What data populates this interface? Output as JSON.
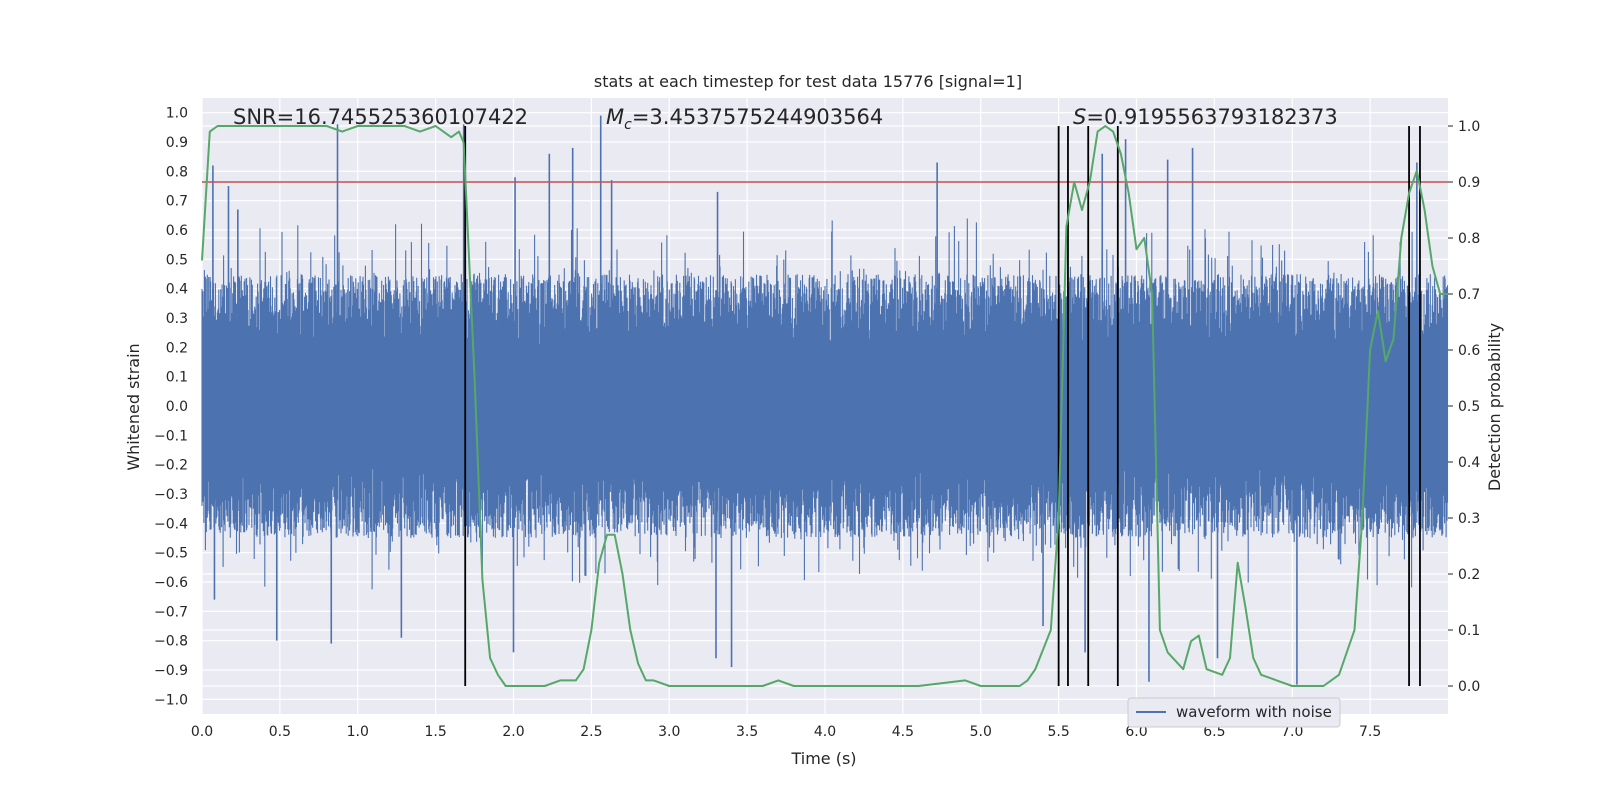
{
  "chart_data": {
    "type": "line",
    "title": "stats at each timestep for test data 15776 [signal=1]",
    "xlabel": "Time (s)",
    "ylabel_left": "Whitened strain",
    "ylabel_right": "Detection probability",
    "xlim": [
      0.0,
      8.0
    ],
    "ylim_left": [
      -1.05,
      1.05
    ],
    "ylim_right": [
      -0.05,
      1.05
    ],
    "x_ticks": [
      "0.0",
      "0.5",
      "1.0",
      "1.5",
      "2.0",
      "2.5",
      "3.0",
      "3.5",
      "4.0",
      "4.5",
      "5.0",
      "5.5",
      "6.0",
      "6.5",
      "7.0",
      "7.5"
    ],
    "y_ticks_left": [
      "1.0",
      "0.9",
      "0.8",
      "0.7",
      "0.6",
      "0.5",
      "0.4",
      "0.3",
      "0.2",
      "0.1",
      "0.0",
      "-0.1",
      "-0.2",
      "-0.3",
      "-0.4",
      "-0.5",
      "-0.6",
      "-0.7",
      "-0.8",
      "-0.9",
      "-1.0"
    ],
    "y_ticks_right": [
      "1.0",
      "0.9",
      "0.8",
      "0.7",
      "0.6",
      "0.5",
      "0.4",
      "0.3",
      "0.2",
      "0.1",
      "0.0"
    ],
    "grid": true,
    "legend_position": "lower-right",
    "annotations": {
      "snr": "SNR=16.745525360107422",
      "mc_symbol": "M",
      "mc_sub": "c",
      "mc_value": "=3.4537575244903564",
      "s_symbol": "S",
      "s_value": "=0.9195563793182373"
    },
    "colors": {
      "waveform": "#4c72b0",
      "probability": "#55a868",
      "threshold": "#c44e52",
      "detection_line": "#000000",
      "plot_bg": "#eaeaf2",
      "grid": "#ffffff"
    },
    "series": [
      {
        "name": "waveform with noise",
        "axis": "left",
        "style": "dense-noise",
        "envelope_upper": 0.45,
        "envelope_lower": -0.45,
        "spikes": [
          {
            "x": 0.07,
            "y": 0.82
          },
          {
            "x": 0.17,
            "y": 0.75
          },
          {
            "x": 0.23,
            "y": 0.67
          },
          {
            "x": 0.87,
            "y": 0.96
          },
          {
            "x": 1.68,
            "y": 0.96
          },
          {
            "x": 2.01,
            "y": 0.78
          },
          {
            "x": 2.23,
            "y": 0.86
          },
          {
            "x": 2.38,
            "y": 0.88
          },
          {
            "x": 2.56,
            "y": 0.99
          },
          {
            "x": 2.63,
            "y": 0.77
          },
          {
            "x": 3.31,
            "y": 0.73
          },
          {
            "x": 4.72,
            "y": 0.83
          },
          {
            "x": 5.78,
            "y": 0.86
          },
          {
            "x": 5.93,
            "y": 0.91
          },
          {
            "x": 6.2,
            "y": 0.84
          },
          {
            "x": 6.36,
            "y": 0.88
          },
          {
            "x": 7.8,
            "y": 0.83
          },
          {
            "x": 0.08,
            "y": -0.66
          },
          {
            "x": 0.48,
            "y": -0.8
          },
          {
            "x": 0.83,
            "y": -0.81
          },
          {
            "x": 1.28,
            "y": -0.79
          },
          {
            "x": 2.0,
            "y": -0.84
          },
          {
            "x": 3.3,
            "y": -0.86
          },
          {
            "x": 3.4,
            "y": -0.89
          },
          {
            "x": 5.4,
            "y": -0.75
          },
          {
            "x": 5.67,
            "y": -0.84
          },
          {
            "x": 6.08,
            "y": -0.94
          },
          {
            "x": 6.52,
            "y": -0.86
          },
          {
            "x": 7.03,
            "y": -0.95
          }
        ]
      },
      {
        "name": "detection probability",
        "axis": "right",
        "x": [
          0.0,
          0.05,
          0.1,
          0.2,
          0.3,
          0.4,
          0.5,
          0.6,
          0.7,
          0.8,
          0.9,
          1.0,
          1.1,
          1.2,
          1.3,
          1.4,
          1.5,
          1.6,
          1.65,
          1.68,
          1.75,
          1.8,
          1.85,
          1.9,
          1.95,
          2.0,
          2.2,
          2.3,
          2.4,
          2.45,
          2.5,
          2.55,
          2.6,
          2.65,
          2.7,
          2.75,
          2.8,
          2.85,
          2.9,
          3.0,
          3.2,
          3.4,
          3.6,
          3.7,
          3.8,
          4.0,
          4.4,
          4.6,
          4.9,
          5.0,
          5.2,
          5.25,
          5.3,
          5.35,
          5.45,
          5.5,
          5.55,
          5.6,
          5.65,
          5.7,
          5.75,
          5.8,
          5.85,
          5.9,
          5.95,
          6.0,
          6.05,
          6.1,
          6.15,
          6.2,
          6.3,
          6.35,
          6.4,
          6.45,
          6.55,
          6.6,
          6.65,
          6.7,
          6.75,
          6.8,
          6.9,
          7.0,
          7.1,
          7.2,
          7.25,
          7.3,
          7.4,
          7.45,
          7.5,
          7.55,
          7.6,
          7.65,
          7.7,
          7.75,
          7.8,
          7.85,
          7.9,
          7.95,
          8.0
        ],
        "values": [
          0.76,
          0.99,
          1.0,
          1.0,
          1.0,
          1.0,
          1.0,
          1.0,
          1.0,
          1.0,
          0.99,
          1.0,
          1.0,
          1.0,
          1.0,
          0.99,
          1.0,
          0.98,
          0.99,
          0.97,
          0.55,
          0.19,
          0.05,
          0.02,
          0.0,
          0.0,
          0.0,
          0.01,
          0.01,
          0.03,
          0.1,
          0.22,
          0.27,
          0.27,
          0.2,
          0.1,
          0.04,
          0.01,
          0.01,
          0.0,
          0.0,
          0.0,
          0.0,
          0.01,
          0.0,
          0.0,
          0.0,
          0.0,
          0.01,
          0.0,
          0.0,
          0.0,
          0.01,
          0.03,
          0.1,
          0.3,
          0.82,
          0.9,
          0.85,
          0.9,
          0.99,
          1.0,
          0.99,
          0.95,
          0.88,
          0.78,
          0.8,
          0.7,
          0.1,
          0.06,
          0.03,
          0.08,
          0.09,
          0.03,
          0.02,
          0.05,
          0.22,
          0.14,
          0.05,
          0.02,
          0.01,
          0.0,
          0.0,
          0.0,
          0.01,
          0.02,
          0.1,
          0.3,
          0.6,
          0.67,
          0.58,
          0.62,
          0.8,
          0.88,
          0.92,
          0.85,
          0.75,
          0.7,
          0.7
        ]
      },
      {
        "name": "threshold",
        "axis": "right",
        "style": "hline",
        "y": 0.9
      }
    ],
    "detection_markers_x": [
      1.69,
      5.5,
      5.56,
      5.69,
      5.88,
      7.75,
      7.82
    ],
    "legend": [
      "waveform with noise"
    ]
  }
}
